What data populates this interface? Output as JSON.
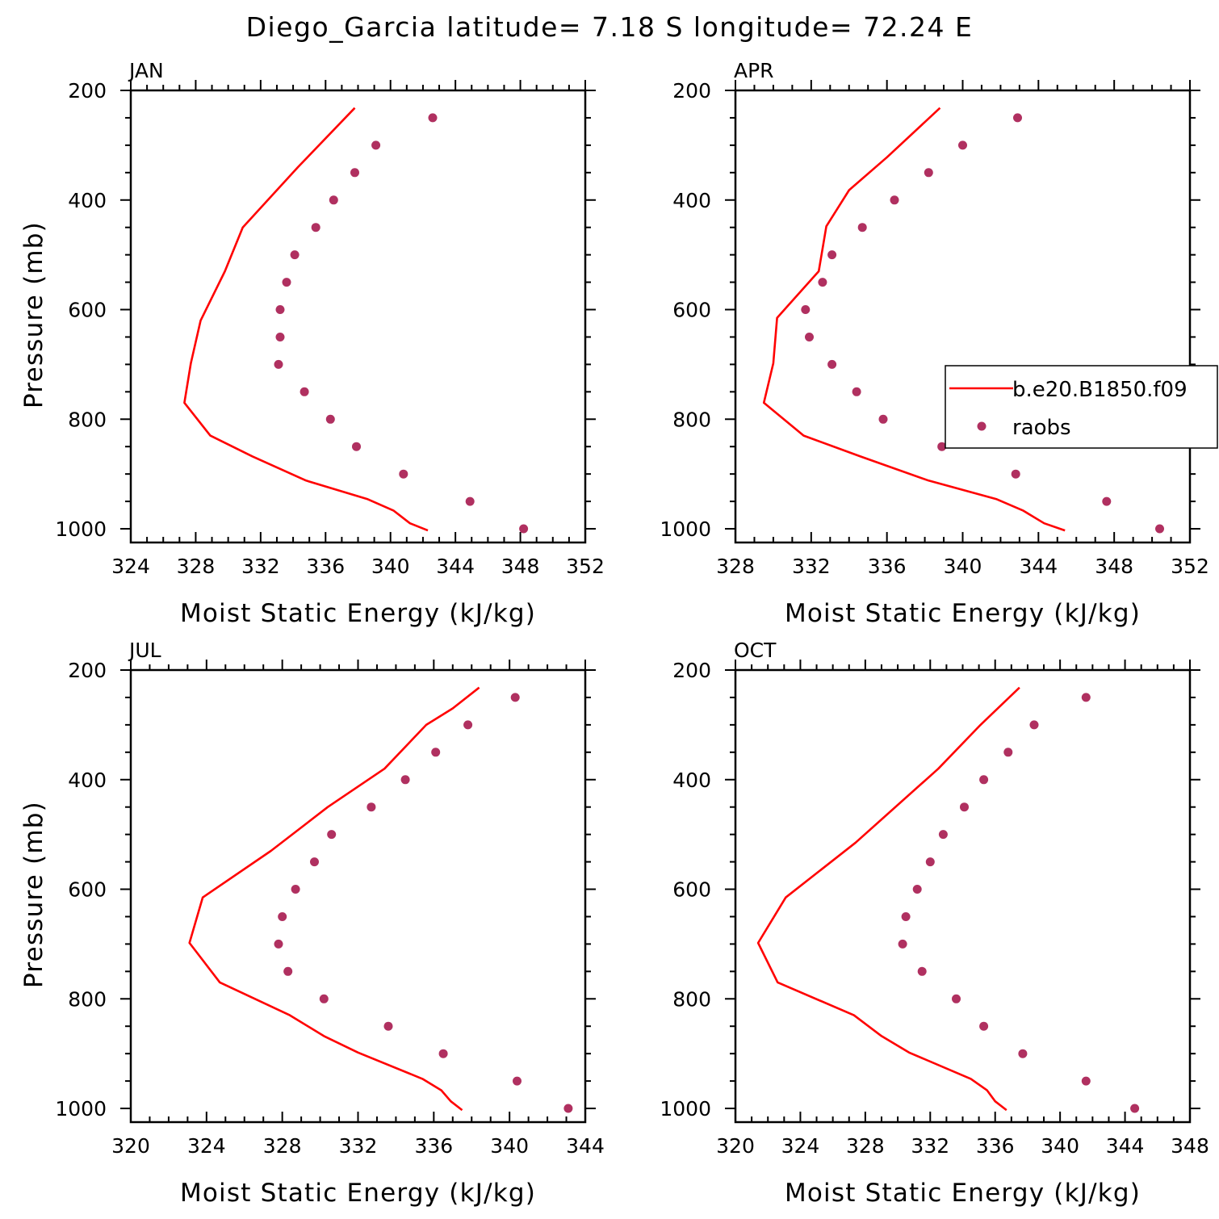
{
  "figure": {
    "title": "Diego_Garcia  latitude= 7.18 S longitude= 72.24 E",
    "colors": {
      "model_line": "#ff0000",
      "raobs_marker": "#b03060",
      "frame": "#000000"
    }
  },
  "legend": {
    "entries": [
      {
        "label": "b.e20.B1850.f09",
        "marker": "line",
        "color": "#ff0000"
      },
      {
        "label": "raobs",
        "marker": "dot",
        "color": "#b03060"
      }
    ],
    "placement": "right of APR panel, overlapping"
  },
  "chart_data": [
    {
      "type": "line",
      "panel": "JAN",
      "xlabel": "Moist Static Energy (kJ/kg)",
      "ylabel": "Pressure (mb)",
      "xlim": [
        324,
        352
      ],
      "ylim": [
        200,
        1025
      ],
      "y_inverted": true,
      "xticks": [
        324,
        328,
        332,
        336,
        340,
        344,
        348,
        352
      ],
      "yticks": [
        200,
        400,
        600,
        800,
        1000
      ],
      "series": [
        {
          "name": "b.e20.B1850.f09",
          "style": "line",
          "x": [
            337.8,
            334.3,
            330.9,
            329.8,
            328.3,
            327.7,
            327.3,
            328.9,
            331.5,
            334.8,
            338.6,
            340.2,
            341.2,
            342.3
          ],
          "y": [
            232,
            340,
            450,
            530,
            620,
            698,
            770,
            830,
            868,
            912,
            946,
            967,
            990,
            1003
          ]
        },
        {
          "name": "raobs",
          "style": "dot",
          "x": [
            342.6,
            339.1,
            337.8,
            336.5,
            335.4,
            334.1,
            333.6,
            333.2,
            333.2,
            333.1,
            334.7,
            336.3,
            337.9,
            340.8,
            344.9,
            348.2
          ],
          "y": [
            250,
            300,
            350,
            400,
            450,
            500,
            550,
            600,
            650,
            700,
            750,
            800,
            850,
            900,
            950,
            1000
          ]
        }
      ]
    },
    {
      "type": "line",
      "panel": "APR",
      "xlabel": "Moist Static Energy (kJ/kg)",
      "ylabel": "",
      "xlim": [
        328,
        352
      ],
      "ylim": [
        200,
        1025
      ],
      "y_inverted": true,
      "xticks": [
        328,
        332,
        336,
        340,
        344,
        348,
        352
      ],
      "yticks": [
        200,
        400,
        600,
        800,
        1000
      ],
      "series": [
        {
          "name": "b.e20.B1850.f09",
          "style": "line",
          "x": [
            338.8,
            336.0,
            334.0,
            332.8,
            332.4,
            330.2,
            330.0,
            329.5,
            331.6,
            334.6,
            338.2,
            341.8,
            343.2,
            344.3,
            345.4
          ],
          "y": [
            232,
            322,
            382,
            448,
            530,
            615,
            698,
            770,
            830,
            868,
            912,
            946,
            967,
            990,
            1003
          ]
        },
        {
          "name": "raobs",
          "style": "dot",
          "x": [
            342.9,
            340.0,
            338.2,
            336.4,
            334.7,
            333.1,
            332.6,
            331.7,
            331.9,
            333.1,
            334.4,
            335.8,
            338.9,
            342.8,
            347.6,
            350.4
          ],
          "y": [
            250,
            300,
            350,
            400,
            450,
            500,
            550,
            600,
            650,
            700,
            750,
            800,
            850,
            900,
            950,
            1000
          ]
        }
      ]
    },
    {
      "type": "line",
      "panel": "JUL",
      "xlabel": "Moist Static Energy (kJ/kg)",
      "ylabel": "Pressure (mb)",
      "xlim": [
        320,
        344
      ],
      "ylim": [
        200,
        1025
      ],
      "y_inverted": true,
      "xticks": [
        320,
        324,
        328,
        332,
        336,
        340,
        344
      ],
      "yticks": [
        200,
        400,
        600,
        800,
        1000
      ],
      "series": [
        {
          "name": "b.e20.B1850.f09",
          "style": "line",
          "x": [
            338.4,
            337.0,
            335.6,
            333.4,
            330.4,
            327.4,
            323.8,
            323.1,
            324.7,
            328.4,
            330.2,
            332.0,
            335.4,
            336.4,
            336.9,
            337.5
          ],
          "y": [
            232,
            270,
            300,
            380,
            450,
            530,
            615,
            698,
            770,
            830,
            868,
            898,
            946,
            967,
            987,
            1003
          ]
        },
        {
          "name": "raobs",
          "style": "dot",
          "x": [
            340.3,
            337.8,
            336.1,
            334.5,
            332.7,
            330.6,
            329.7,
            328.7,
            328.0,
            327.8,
            328.3,
            330.2,
            333.6,
            336.5,
            340.4,
            343.1
          ],
          "y": [
            250,
            300,
            350,
            400,
            450,
            500,
            550,
            600,
            650,
            700,
            750,
            800,
            850,
            900,
            950,
            1000
          ]
        }
      ]
    },
    {
      "type": "line",
      "panel": "OCT",
      "xlabel": "Moist Static Energy (kJ/kg)",
      "ylabel": "",
      "xlim": [
        320,
        348
      ],
      "ylim": [
        200,
        1025
      ],
      "y_inverted": true,
      "xticks": [
        320,
        324,
        328,
        332,
        336,
        340,
        344,
        348
      ],
      "yticks": [
        200,
        400,
        600,
        800,
        1000
      ],
      "series": [
        {
          "name": "b.e20.B1850.f09",
          "style": "line",
          "x": [
            337.5,
            335.1,
            332.5,
            327.4,
            323.1,
            321.4,
            322.6,
            327.3,
            329.0,
            330.7,
            334.5,
            335.5,
            336.0,
            336.7
          ],
          "y": [
            232,
            300,
            380,
            515,
            615,
            698,
            770,
            830,
            868,
            898,
            946,
            967,
            987,
            1003
          ]
        },
        {
          "name": "raobs",
          "style": "dot",
          "x": [
            341.6,
            338.4,
            336.8,
            335.3,
            334.1,
            332.8,
            332.0,
            331.2,
            330.5,
            330.3,
            331.5,
            333.6,
            335.3,
            337.7,
            341.6,
            344.6
          ],
          "y": [
            250,
            300,
            350,
            400,
            450,
            500,
            550,
            600,
            650,
            700,
            750,
            800,
            850,
            900,
            950,
            1000
          ]
        }
      ]
    }
  ]
}
